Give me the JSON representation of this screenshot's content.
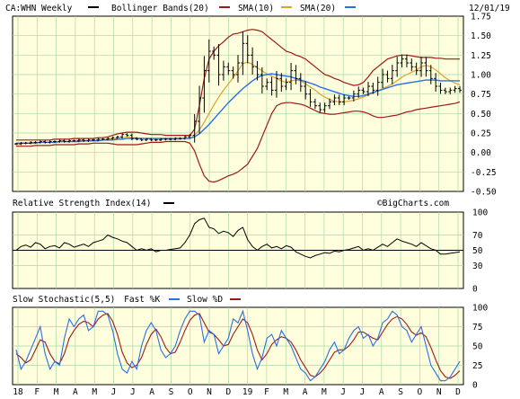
{
  "header": {
    "symbol": "CA:WHN Weekly",
    "date": "12/01/19",
    "legend": [
      {
        "label": "Bollinger Bands(20)",
        "color": "#a01818"
      },
      {
        "label": "SMA(10)",
        "color": "#e0a030"
      },
      {
        "label": "SMA(20)",
        "color": "#2a6fe8"
      }
    ]
  },
  "watermark": "©BigCharts.com",
  "colors": {
    "background": "#ffffdd",
    "grid": "#a8d8a8",
    "price": "#000000",
    "bollinger": "#a01818",
    "sma10": "#e0a030",
    "sma20": "#2a6fe8",
    "fastK": "#2a6fe8",
    "slowD": "#a01818"
  },
  "x_axis": {
    "ticks": [
      "18",
      "F",
      "M",
      "A",
      "M",
      "J",
      "J",
      "A",
      "S",
      "O",
      "N",
      "D",
      "19",
      "F",
      "M",
      "A",
      "M",
      "J",
      "J",
      "A",
      "S",
      "O",
      "N",
      "D"
    ]
  },
  "chart_data": [
    {
      "type": "line",
      "title": "CA:WHN Weekly",
      "subtitle": "Bollinger Bands(20), SMA(10), SMA(20)",
      "x": [
        "Jan 18",
        "Jan 18",
        "Jan 18",
        "Jan 18",
        "Feb 18",
        "Feb 18",
        "Feb 18",
        "Feb 18",
        "Mar 18",
        "Mar 18",
        "Mar 18",
        "Mar 18",
        "Apr 18",
        "Apr 18",
        "Apr 18",
        "Apr 18",
        "May 18",
        "May 18",
        "May 18",
        "May 18",
        "Jun 18",
        "Jun 18",
        "Jun 18",
        "Jun 18",
        "Jul 18",
        "Jul 18",
        "Jul 18",
        "Jul 18",
        "Aug 18",
        "Aug 18",
        "Aug 18",
        "Aug 18",
        "Sep 18",
        "Sep 18",
        "Sep 18",
        "Sep 18",
        "Oct 18",
        "Oct 18",
        "Oct 18",
        "Oct 18",
        "Nov 18",
        "Nov 18",
        "Nov 18",
        "Nov 18",
        "Dec 18",
        "Dec 18",
        "Dec 18",
        "Dec 18",
        "Jan 19",
        "Jan 19",
        "Jan 19",
        "Jan 19",
        "Feb 19",
        "Feb 19",
        "Feb 19",
        "Feb 19",
        "Mar 19",
        "Mar 19",
        "Mar 19",
        "Mar 19",
        "Apr 19",
        "Apr 19",
        "Apr 19",
        "Apr 19",
        "May 19",
        "May 19",
        "May 19",
        "May 19",
        "Jun 19",
        "Jun 19",
        "Jun 19",
        "Jun 19",
        "Jul 19",
        "Jul 19",
        "Jul 19",
        "Jul 19",
        "Aug 19",
        "Aug 19",
        "Aug 19",
        "Aug 19",
        "Sep 19",
        "Sep 19",
        "Sep 19",
        "Sep 19",
        "Oct 19",
        "Oct 19",
        "Oct 19",
        "Oct 19",
        "Nov 19",
        "Nov 19",
        "Nov 19",
        "Nov 19",
        "Dec 19"
      ],
      "ylim": [
        -0.5,
        1.75
      ],
      "yticks": [
        1.75,
        1.5,
        1.25,
        1.0,
        0.75,
        0.5,
        0.25,
        0.0,
        -0.25,
        -0.5
      ],
      "series": [
        {
          "name": "Price",
          "style": "ohlc",
          "values": [
            0.11,
            0.12,
            0.12,
            0.13,
            0.13,
            0.14,
            0.13,
            0.14,
            0.14,
            0.15,
            0.14,
            0.15,
            0.15,
            0.16,
            0.15,
            0.16,
            0.16,
            0.17,
            0.17,
            0.18,
            0.19,
            0.2,
            0.23,
            0.22,
            0.18,
            0.17,
            0.16,
            0.17,
            0.16,
            0.16,
            0.17,
            0.17,
            0.17,
            0.18,
            0.18,
            0.2,
            0.22,
            0.4,
            0.7,
            1.05,
            1.3,
            1.25,
            1.0,
            1.1,
            1.05,
            1.0,
            1.15,
            1.4,
            1.25,
            1.1,
            1.0,
            0.85,
            0.9,
            0.8,
            0.95,
            0.85,
            0.9,
            1.05,
            0.95,
            0.85,
            0.75,
            0.65,
            0.6,
            0.55,
            0.6,
            0.65,
            0.7,
            0.65,
            0.7,
            0.7,
            0.75,
            0.8,
            0.78,
            0.85,
            0.8,
            0.9,
            1.0,
            0.95,
            1.05,
            1.15,
            1.2,
            1.15,
            1.1,
            1.05,
            1.15,
            1.05,
            0.95,
            0.85,
            0.8,
            0.78,
            0.8,
            0.82,
            0.8
          ]
        },
        {
          "name": "Bollinger Bands(20)",
          "values_upper": [
            0.16,
            0.16,
            0.16,
            0.16,
            0.16,
            0.16,
            0.16,
            0.16,
            0.17,
            0.17,
            0.17,
            0.17,
            0.18,
            0.18,
            0.18,
            0.18,
            0.18,
            0.19,
            0.19,
            0.2,
            0.22,
            0.24,
            0.25,
            0.26,
            0.26,
            0.26,
            0.25,
            0.24,
            0.23,
            0.23,
            0.23,
            0.22,
            0.22,
            0.22,
            0.22,
            0.22,
            0.22,
            0.3,
            0.6,
            0.95,
            1.2,
            1.3,
            1.37,
            1.42,
            1.48,
            1.52,
            1.53,
            1.55,
            1.57,
            1.58,
            1.57,
            1.55,
            1.5,
            1.45,
            1.4,
            1.35,
            1.3,
            1.28,
            1.25,
            1.23,
            1.2,
            1.15,
            1.1,
            1.05,
            1.0,
            0.98,
            0.95,
            0.93,
            0.9,
            0.88,
            0.86,
            0.87,
            0.9,
            0.97,
            1.05,
            1.1,
            1.15,
            1.2,
            1.22,
            1.24,
            1.25,
            1.25,
            1.24,
            1.23,
            1.22,
            1.22,
            1.22,
            1.21,
            1.21,
            1.2,
            1.2,
            1.2,
            1.2
          ],
          "values_lower": [
            0.08,
            0.08,
            0.08,
            0.08,
            0.09,
            0.09,
            0.09,
            0.09,
            0.1,
            0.1,
            0.1,
            0.1,
            0.1,
            0.11,
            0.11,
            0.11,
            0.12,
            0.12,
            0.12,
            0.12,
            0.11,
            0.1,
            0.1,
            0.1,
            0.1,
            0.1,
            0.11,
            0.12,
            0.13,
            0.13,
            0.13,
            0.14,
            0.14,
            0.14,
            0.14,
            0.14,
            0.12,
            0.02,
            -0.15,
            -0.3,
            -0.37,
            -0.38,
            -0.36,
            -0.33,
            -0.3,
            -0.28,
            -0.25,
            -0.2,
            -0.15,
            -0.05,
            0.05,
            0.2,
            0.35,
            0.5,
            0.6,
            0.63,
            0.64,
            0.64,
            0.63,
            0.62,
            0.6,
            0.57,
            0.54,
            0.51,
            0.5,
            0.49,
            0.49,
            0.5,
            0.51,
            0.52,
            0.53,
            0.53,
            0.52,
            0.5,
            0.47,
            0.45,
            0.45,
            0.46,
            0.47,
            0.48,
            0.5,
            0.52,
            0.53,
            0.55,
            0.56,
            0.57,
            0.58,
            0.59,
            0.6,
            0.61,
            0.62,
            0.63,
            0.65
          ]
        },
        {
          "name": "SMA(10)",
          "values": [
            0.11,
            0.11,
            0.12,
            0.12,
            0.12,
            0.13,
            0.13,
            0.13,
            0.13,
            0.14,
            0.14,
            0.14,
            0.14,
            0.15,
            0.15,
            0.15,
            0.15,
            0.16,
            0.16,
            0.17,
            0.17,
            0.18,
            0.19,
            0.2,
            0.19,
            0.19,
            0.18,
            0.18,
            0.18,
            0.17,
            0.17,
            0.17,
            0.17,
            0.17,
            0.17,
            0.18,
            0.18,
            0.22,
            0.29,
            0.39,
            0.5,
            0.61,
            0.71,
            0.8,
            0.88,
            0.96,
            1.05,
            1.14,
            1.16,
            1.13,
            1.09,
            1.05,
            1.01,
            0.98,
            0.95,
            0.92,
            0.9,
            0.92,
            0.93,
            0.92,
            0.88,
            0.84,
            0.8,
            0.75,
            0.71,
            0.68,
            0.66,
            0.65,
            0.65,
            0.66,
            0.67,
            0.69,
            0.71,
            0.74,
            0.76,
            0.79,
            0.82,
            0.85,
            0.88,
            0.92,
            0.97,
            1.0,
            1.03,
            1.06,
            1.1,
            1.12,
            1.1,
            1.06,
            1.01,
            0.96,
            0.92,
            0.89,
            0.87
          ]
        },
        {
          "name": "SMA(20)",
          "values": [
            0.12,
            0.12,
            0.12,
            0.12,
            0.12,
            0.13,
            0.13,
            0.13,
            0.13,
            0.14,
            0.14,
            0.14,
            0.14,
            0.14,
            0.15,
            0.15,
            0.15,
            0.15,
            0.16,
            0.16,
            0.16,
            0.17,
            0.17,
            0.18,
            0.18,
            0.18,
            0.18,
            0.18,
            0.18,
            0.18,
            0.18,
            0.18,
            0.18,
            0.18,
            0.18,
            0.18,
            0.18,
            0.2,
            0.24,
            0.3,
            0.36,
            0.43,
            0.5,
            0.57,
            0.64,
            0.7,
            0.76,
            0.82,
            0.87,
            0.92,
            0.96,
            0.99,
            1.0,
            1.01,
            1.0,
            0.99,
            0.98,
            0.97,
            0.95,
            0.93,
            0.91,
            0.89,
            0.87,
            0.84,
            0.82,
            0.8,
            0.78,
            0.76,
            0.74,
            0.73,
            0.72,
            0.72,
            0.73,
            0.75,
            0.77,
            0.79,
            0.81,
            0.83,
            0.85,
            0.87,
            0.88,
            0.89,
            0.9,
            0.91,
            0.92,
            0.93,
            0.93,
            0.93,
            0.92,
            0.92,
            0.92,
            0.92,
            0.92
          ]
        }
      ]
    },
    {
      "type": "line",
      "title": "Relative Strength Index(14)",
      "ylim": [
        0,
        100
      ],
      "yticks": [
        100,
        70,
        50,
        30,
        0
      ],
      "reference_line": 50,
      "series": [
        {
          "name": "RSI(14)",
          "values": [
            50,
            55,
            57,
            54,
            60,
            58,
            52,
            55,
            56,
            53,
            60,
            58,
            54,
            56,
            58,
            55,
            60,
            62,
            64,
            70,
            67,
            65,
            62,
            60,
            55,
            50,
            52,
            50,
            52,
            48,
            50,
            50,
            51,
            52,
            53,
            60,
            70,
            85,
            90,
            92,
            80,
            78,
            72,
            75,
            73,
            68,
            76,
            80,
            64,
            55,
            50,
            55,
            58,
            53,
            55,
            52,
            56,
            54,
            48,
            45,
            42,
            40,
            43,
            45,
            47,
            46,
            49,
            48,
            50,
            51,
            53,
            55,
            50,
            52,
            50,
            54,
            58,
            55,
            60,
            65,
            62,
            60,
            58,
            55,
            60,
            56,
            52,
            50,
            45,
            45,
            46,
            47,
            48
          ]
        }
      ]
    },
    {
      "type": "line",
      "title": "Slow Stochastic(5,5)",
      "ylim": [
        0,
        100
      ],
      "yticks": [
        100,
        75,
        50,
        25,
        0
      ],
      "series": [
        {
          "name": "Fast %K",
          "values": [
            45,
            20,
            30,
            45,
            60,
            75,
            40,
            20,
            30,
            25,
            60,
            85,
            75,
            85,
            90,
            70,
            75,
            95,
            95,
            90,
            70,
            40,
            20,
            15,
            30,
            20,
            50,
            70,
            80,
            70,
            45,
            35,
            40,
            50,
            70,
            85,
            95,
            95,
            90,
            55,
            70,
            65,
            40,
            50,
            60,
            85,
            80,
            95,
            70,
            40,
            20,
            35,
            60,
            65,
            50,
            70,
            60,
            50,
            35,
            20,
            15,
            5,
            10,
            20,
            30,
            45,
            55,
            40,
            45,
            60,
            70,
            75,
            60,
            65,
            50,
            60,
            80,
            85,
            95,
            90,
            75,
            70,
            55,
            65,
            75,
            50,
            25,
            15,
            5,
            5,
            10,
            20,
            30
          ]
        },
        {
          "name": "Slow %D",
          "values": [
            40,
            35,
            28,
            32,
            45,
            58,
            55,
            40,
            30,
            27,
            40,
            60,
            70,
            78,
            82,
            80,
            75,
            85,
            90,
            92,
            82,
            65,
            42,
            28,
            22,
            25,
            35,
            52,
            65,
            72,
            62,
            48,
            40,
            42,
            55,
            70,
            83,
            90,
            92,
            80,
            68,
            65,
            58,
            50,
            52,
            65,
            75,
            85,
            80,
            65,
            45,
            32,
            40,
            52,
            58,
            62,
            60,
            55,
            45,
            32,
            22,
            12,
            10,
            15,
            22,
            32,
            42,
            45,
            45,
            50,
            58,
            68,
            68,
            64,
            60,
            58,
            68,
            78,
            85,
            88,
            85,
            78,
            68,
            64,
            67,
            62,
            48,
            32,
            18,
            10,
            8,
            12,
            18
          ]
        }
      ]
    }
  ]
}
